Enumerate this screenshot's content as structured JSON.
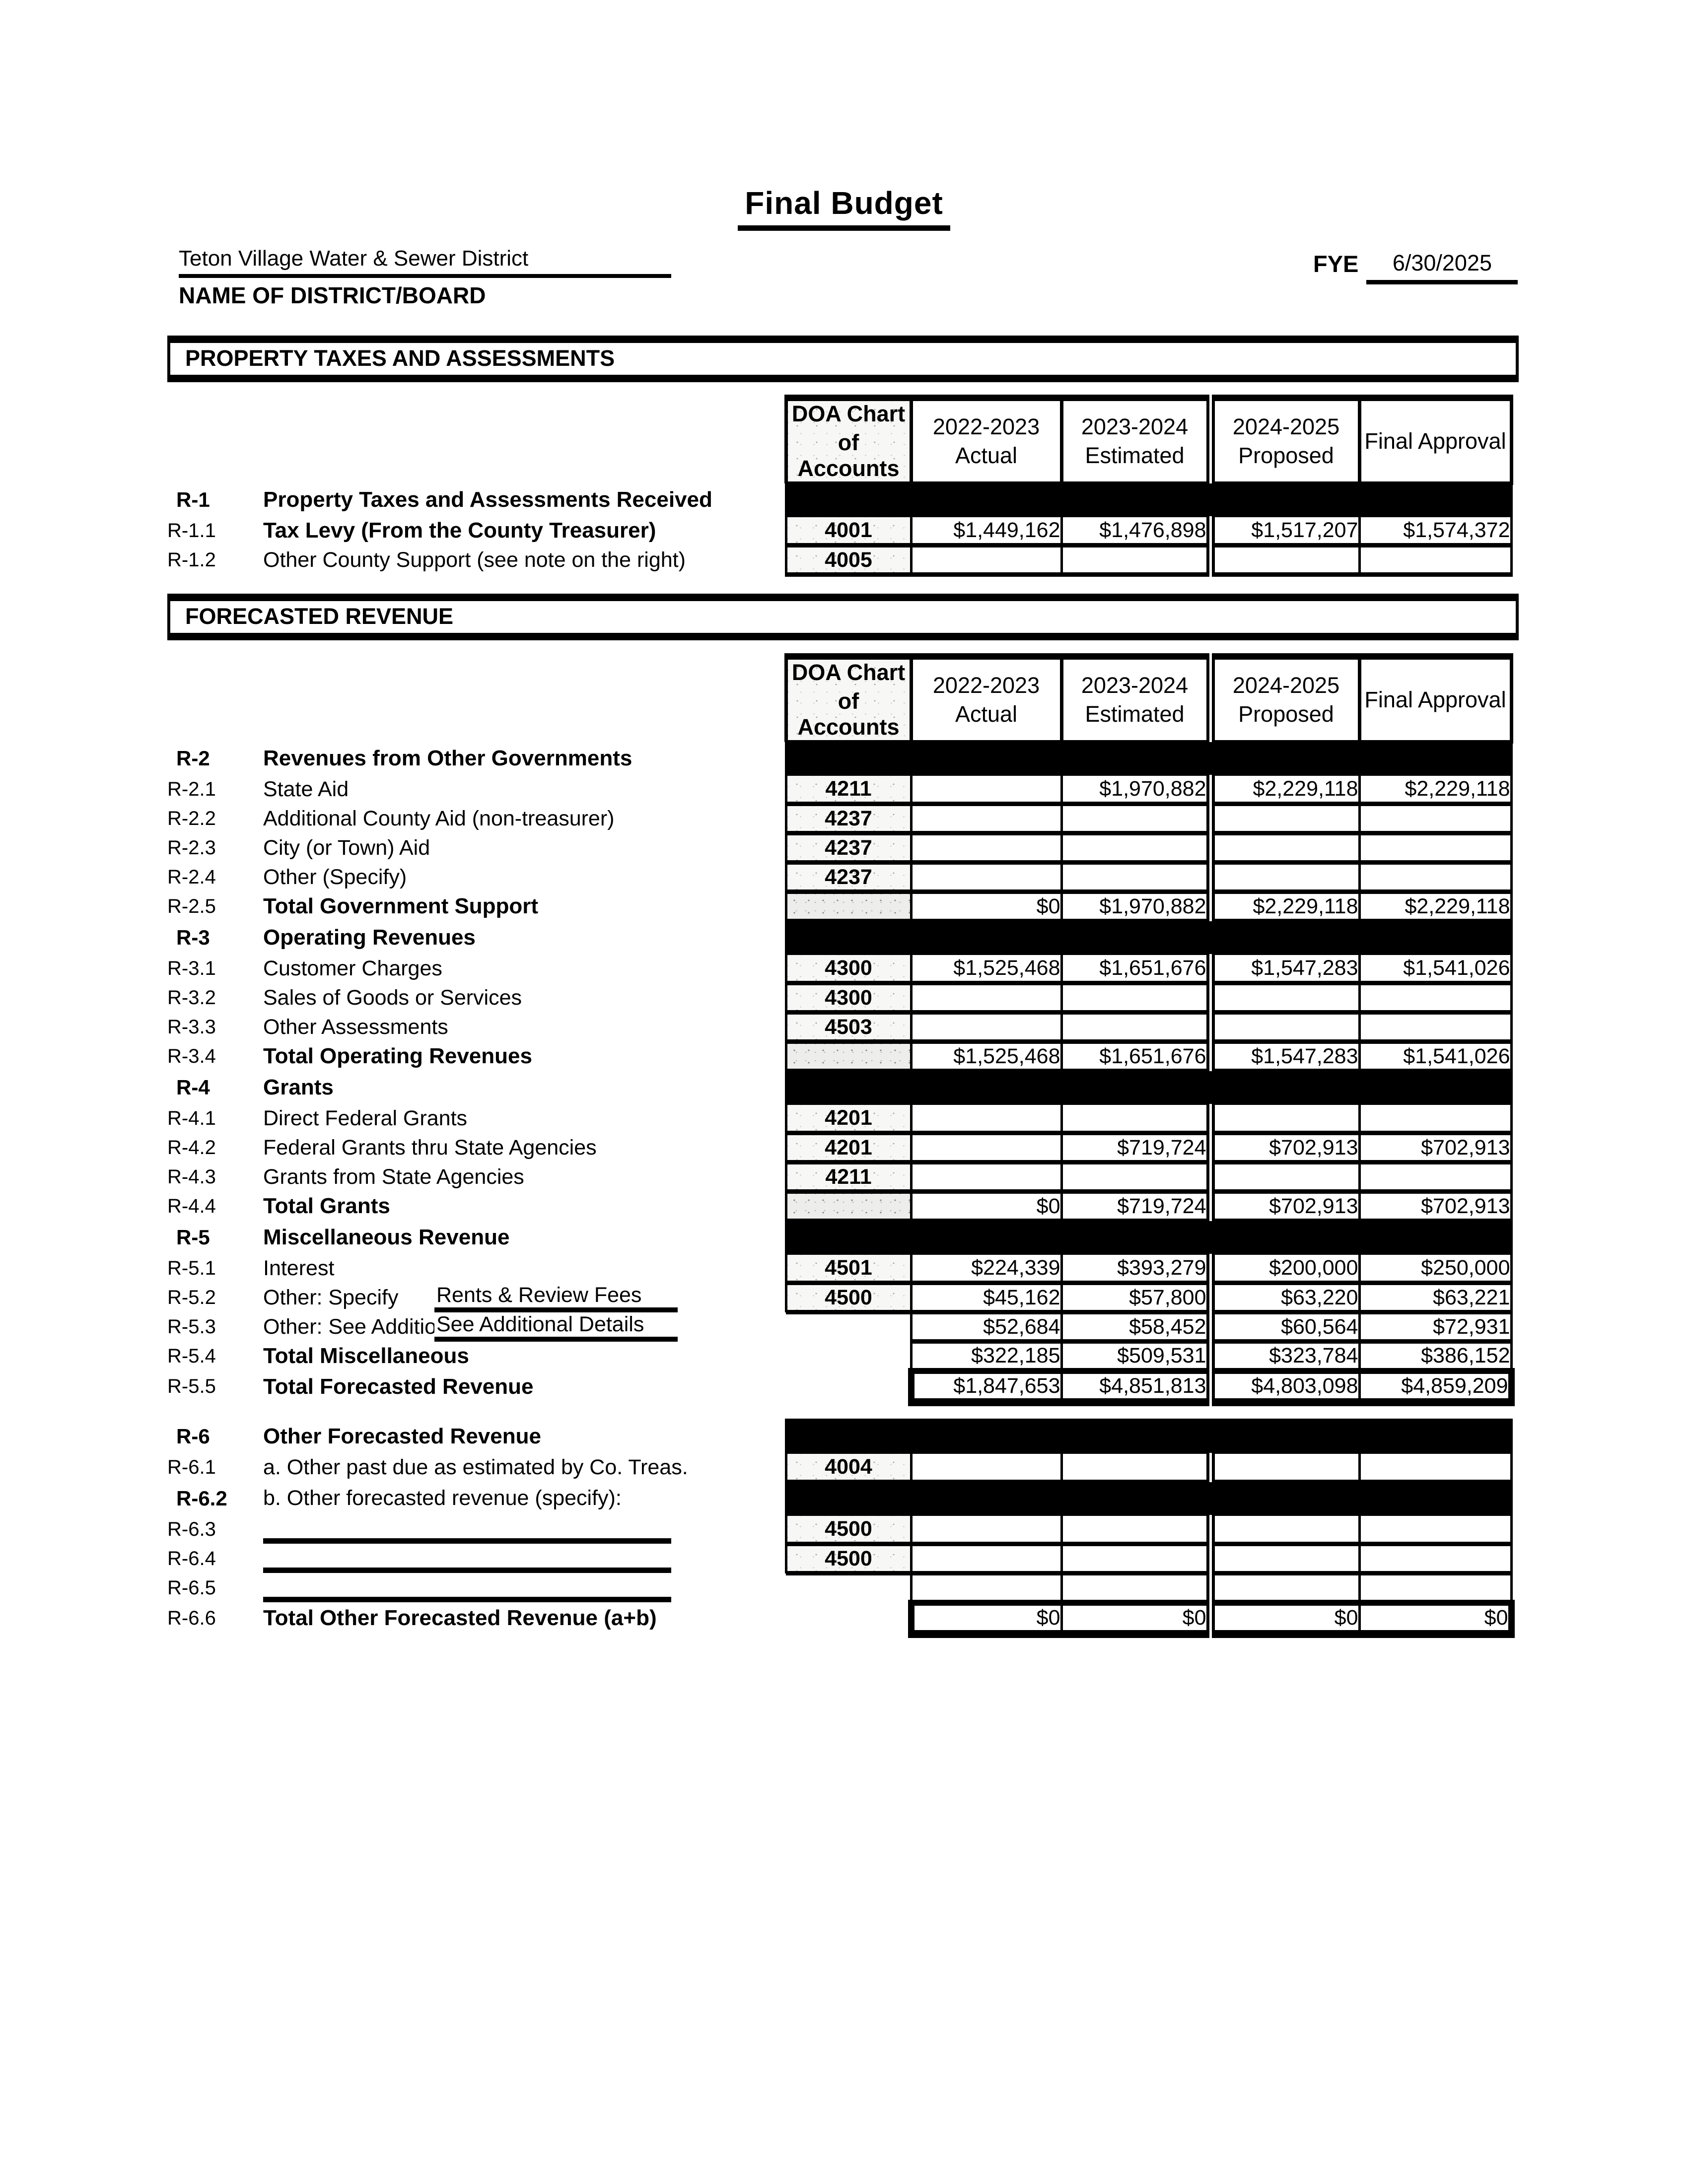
{
  "header": {
    "title": "Final Budget",
    "district_name": "Teton Village Water & Sewer District",
    "district_caption": "NAME OF DISTRICT/BOARD",
    "fye_label": "FYE",
    "fye_value": "6/30/2025"
  },
  "banners": {
    "property_taxes": "PROPERTY TAXES AND ASSESSMENTS",
    "forecasted_revenue": "FORECASTED REVENUE"
  },
  "col_headers": {
    "doa_line1": "DOA Chart",
    "doa_line2": "of Accounts",
    "cols": [
      {
        "line1": "2022-2023",
        "line2": "Actual"
      },
      {
        "line1": "2023-2024",
        "line2": "Estimated"
      },
      {
        "line1": "2024-2025",
        "line2": "Proposed"
      },
      {
        "line1": "Final Approval",
        "line2": ""
      }
    ]
  },
  "property_tax_table": {
    "rows": [
      {
        "band": true,
        "bold": true,
        "num": "R-1",
        "label": "Property Taxes and Assessments Received"
      },
      {
        "num": "R-1.1",
        "label": "Tax Levy (From the County Treasurer)",
        "bold": true,
        "doa": "4001",
        "vals": [
          "$1,449,162",
          "$1,476,898",
          "$1,517,207",
          "$1,574,372"
        ]
      },
      {
        "num": "R-1.2",
        "label": "Other County Support (see note on the right)",
        "doa": "4005",
        "vals": [
          "",
          "",
          "",
          ""
        ]
      }
    ]
  },
  "forecast_table": {
    "rows": [
      {
        "band": true,
        "bold": true,
        "num": "R-2",
        "label": "Revenues from Other Governments"
      },
      {
        "num": "R-2.1",
        "label": "State Aid",
        "doa": "4211",
        "vals": [
          "",
          "$1,970,882",
          "$2,229,118",
          "$2,229,118"
        ]
      },
      {
        "num": "R-2.2",
        "label": "Additional County Aid (non-treasurer)",
        "doa": "4237",
        "vals": [
          "",
          "",
          "",
          ""
        ]
      },
      {
        "num": "R-2.3",
        "label": "City (or Town) Aid",
        "doa": "4237",
        "vals": [
          "",
          "",
          "",
          ""
        ]
      },
      {
        "num": "R-2.4",
        "label": "Other (Specify)",
        "doa": "4237",
        "vals": [
          "",
          "",
          "",
          ""
        ]
      },
      {
        "num": "R-2.5",
        "label": "Total Government Support",
        "bold": true,
        "doa": "",
        "shaded": true,
        "vals": [
          "$0",
          "$1,970,882",
          "$2,229,118",
          "$2,229,118"
        ]
      },
      {
        "band": true,
        "bold": true,
        "num": "R-3",
        "label": "Operating Revenues"
      },
      {
        "num": "R-3.1",
        "label": "Customer Charges",
        "doa": "4300",
        "vals": [
          "$1,525,468",
          "$1,651,676",
          "$1,547,283",
          "$1,541,026"
        ]
      },
      {
        "num": "R-3.2",
        "label": "Sales of Goods or Services",
        "doa": "4300",
        "vals": [
          "",
          "",
          "",
          ""
        ]
      },
      {
        "num": "R-3.3",
        "label": "Other Assessments",
        "doa": "4503",
        "vals": [
          "",
          "",
          "",
          ""
        ]
      },
      {
        "num": "R-3.4",
        "label": "Total Operating Revenues",
        "bold": true,
        "doa": "",
        "shaded": true,
        "vals": [
          "$1,525,468",
          "$1,651,676",
          "$1,547,283",
          "$1,541,026"
        ]
      },
      {
        "band": true,
        "bold": true,
        "num": "R-4",
        "label": "Grants"
      },
      {
        "num": "R-4.1",
        "label": "Direct Federal Grants",
        "doa": "4201",
        "vals": [
          "",
          "",
          "",
          ""
        ]
      },
      {
        "num": "R-4.2",
        "label": "Federal Grants thru State Agencies",
        "doa": "4201",
        "vals": [
          "",
          "$719,724",
          "$702,913",
          "$702,913"
        ]
      },
      {
        "num": "R-4.3",
        "label": "Grants from State Agencies",
        "doa": "4211",
        "vals": [
          "",
          "",
          "",
          ""
        ]
      },
      {
        "num": "R-4.4",
        "label": "Total Grants",
        "bold": true,
        "doa": "",
        "shaded": true,
        "vals": [
          "$0",
          "$719,724",
          "$702,913",
          "$702,913"
        ]
      },
      {
        "band": true,
        "bold": true,
        "num": "R-5",
        "label": "Miscellaneous Revenue"
      },
      {
        "num": "R-5.1",
        "label": "Interest",
        "doa": "4501",
        "vals": [
          "$224,339",
          "$393,279",
          "$200,000",
          "$250,000"
        ]
      },
      {
        "num": "R-5.2",
        "label": "Other: Specify",
        "specify": "Rents & Review Fees",
        "doa": "4500",
        "vals": [
          "$45,162",
          "$57,800",
          "$63,220",
          "$63,221"
        ]
      },
      {
        "num": "R-5.3",
        "label": "Other: See Additio",
        "specify": "See Additional Details",
        "no_doa": true,
        "shaded": true,
        "vals": [
          "$52,684",
          "$58,452",
          "$60,564",
          "$72,931"
        ]
      },
      {
        "num": "R-5.4",
        "label": "Total Miscellaneous",
        "bold": true,
        "no_doa": true,
        "shaded": true,
        "vals": [
          "$322,185",
          "$509,531",
          "$323,784",
          "$386,152"
        ]
      },
      {
        "num": "R-5.5",
        "label": "Total Forecasted Revenue",
        "bold": true,
        "no_doa": true,
        "shaded": true,
        "heavy": true,
        "vals": [
          "$1,847,653",
          "$4,851,813",
          "$4,803,098",
          "$4,859,209"
        ]
      }
    ]
  },
  "other_table": {
    "rows": [
      {
        "band": true,
        "bold": true,
        "num": "R-6",
        "label": "Other Forecasted Revenue"
      },
      {
        "num": "R-6.1",
        "label": "a. Other past due as estimated by Co. Treas.",
        "doa": "4004",
        "vals": [
          "",
          "",
          "",
          ""
        ]
      },
      {
        "band": true,
        "num": "R-6.2",
        "label": "b. Other forecasted revenue (specify):"
      },
      {
        "num": "R-6.3",
        "label": "",
        "blank_line": true,
        "doa": "4500",
        "vals": [
          "",
          "",
          "",
          ""
        ]
      },
      {
        "num": "R-6.4",
        "label": "",
        "blank_line": true,
        "doa": "4500",
        "vals": [
          "",
          "",
          "",
          ""
        ]
      },
      {
        "num": "R-6.5",
        "label": "",
        "blank_line": true,
        "no_doa": true,
        "shaded": true,
        "vals": [
          "",
          "",
          "",
          ""
        ]
      },
      {
        "num": "R-6.6",
        "label": "Total Other Forecasted Revenue (a+b)",
        "bold": true,
        "no_doa": true,
        "shaded": true,
        "heavy": true,
        "vals": [
          "$0",
          "$0",
          "$0",
          "$0"
        ]
      }
    ]
  }
}
